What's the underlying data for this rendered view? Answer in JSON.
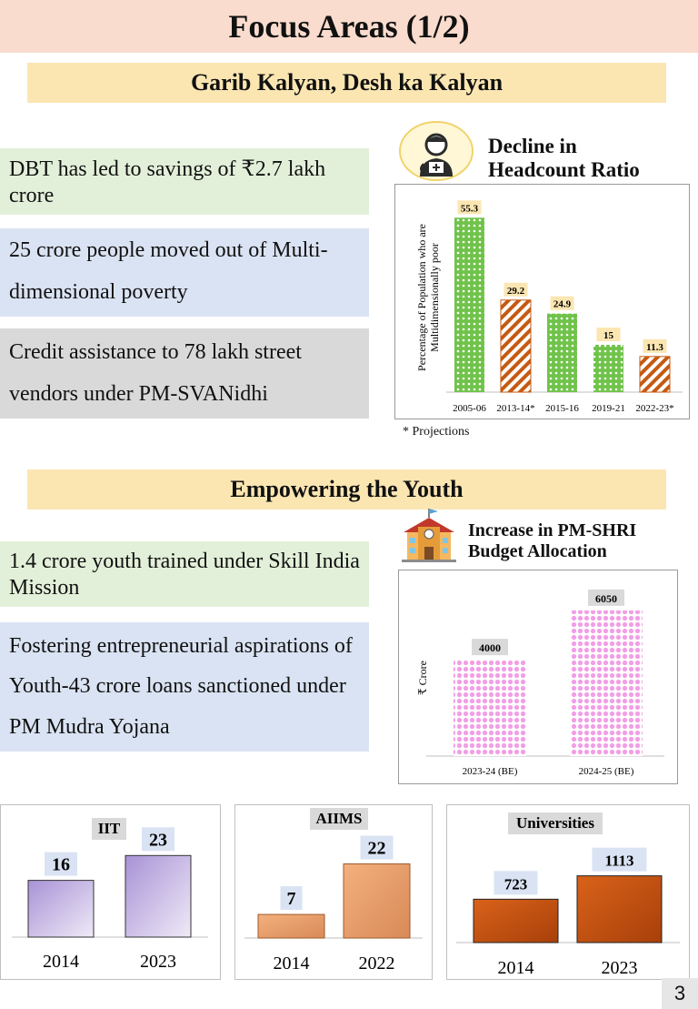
{
  "page_title": "Focus Areas (1/2)",
  "page_number": "3",
  "section1": {
    "heading": "Garib Kalyan, Desh ka Kalyan",
    "facts": [
      "DBT has led to savings of ₹2.7 lakh crore",
      "25 crore people moved out of Multi-dimensional poverty",
      "Credit assistance to 78 lakh street vendors under PM-SVANidhi"
    ]
  },
  "section2": {
    "heading": "Empowering the Youth",
    "facts": [
      "1.4 crore youth trained under Skill India Mission",
      "Fostering entrepreneurial aspirations of Youth-43 crore loans sanctioned under PM Mudra Yojana"
    ]
  },
  "icons": {
    "doctor": "doctor-icon",
    "school": "school-icon"
  },
  "chart_data": [
    {
      "type": "bar",
      "title": "Decline in Headcount Ratio",
      "ylabel": "Percentage of Population who are Multidimensionally poor",
      "xlabel": "",
      "categories": [
        "2005-06",
        "2013-14*",
        "2015-16",
        "2019-21",
        "2022-23*"
      ],
      "values": [
        55.3,
        29.2,
        24.9,
        15,
        11.3
      ],
      "projected": [
        false,
        true,
        false,
        false,
        true
      ],
      "ylim": [
        0,
        60
      ],
      "footnote": "* Projections",
      "colors": {
        "actual": "#70c34a",
        "projected": "#c55a11"
      }
    },
    {
      "type": "bar",
      "title": "Increase in PM-SHRI Budget Allocation",
      "ylabel": "₹ Crore",
      "xlabel": "",
      "categories": [
        "2023-24 (BE)",
        "2024-25 (BE)"
      ],
      "values": [
        4000,
        6050
      ],
      "ylim": [
        0,
        6500
      ],
      "colors": {
        "bar": "#f29ee6"
      }
    },
    {
      "type": "bar",
      "title": "IIT",
      "categories": [
        "2014",
        "2023"
      ],
      "values": [
        16,
        23
      ],
      "ylim": [
        0,
        30
      ],
      "colors": {
        "bar": "#b7a3d9"
      }
    },
    {
      "type": "bar",
      "title": "AIIMS",
      "categories": [
        "2014",
        "2022"
      ],
      "values": [
        7,
        22
      ],
      "ylim": [
        0,
        27
      ],
      "colors": {
        "bar": "#e59b6e"
      }
    },
    {
      "type": "bar",
      "title": "Universities",
      "categories": [
        "2014",
        "2023"
      ],
      "values": [
        723,
        1113
      ],
      "ylim": [
        0,
        1350
      ],
      "colors": {
        "bar": "#c9500f"
      }
    }
  ]
}
